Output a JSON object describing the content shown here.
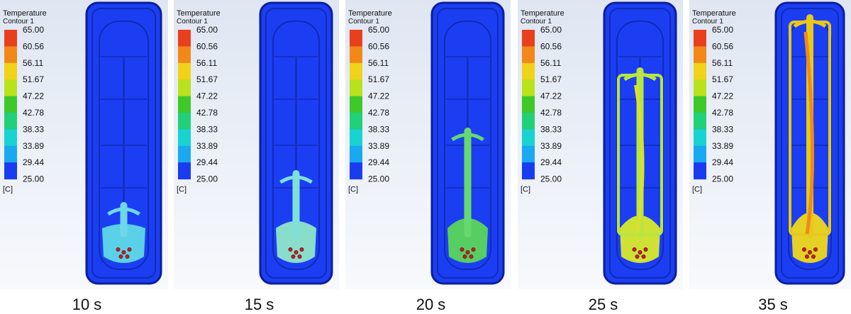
{
  "legend": {
    "title": "Temperature",
    "subtitle": "Contour 1",
    "levels": [
      "65.00",
      "60.56",
      "56.11",
      "51.67",
      "47.22",
      "42.78",
      "38.33",
      "33.89",
      "29.44",
      "25.00"
    ],
    "unit": "[C]"
  },
  "panels": [
    {
      "label": "10 s"
    },
    {
      "label": "15 s"
    },
    {
      "label": "20 s"
    },
    {
      "label": "25 s"
    },
    {
      "label": "35 s"
    }
  ]
}
